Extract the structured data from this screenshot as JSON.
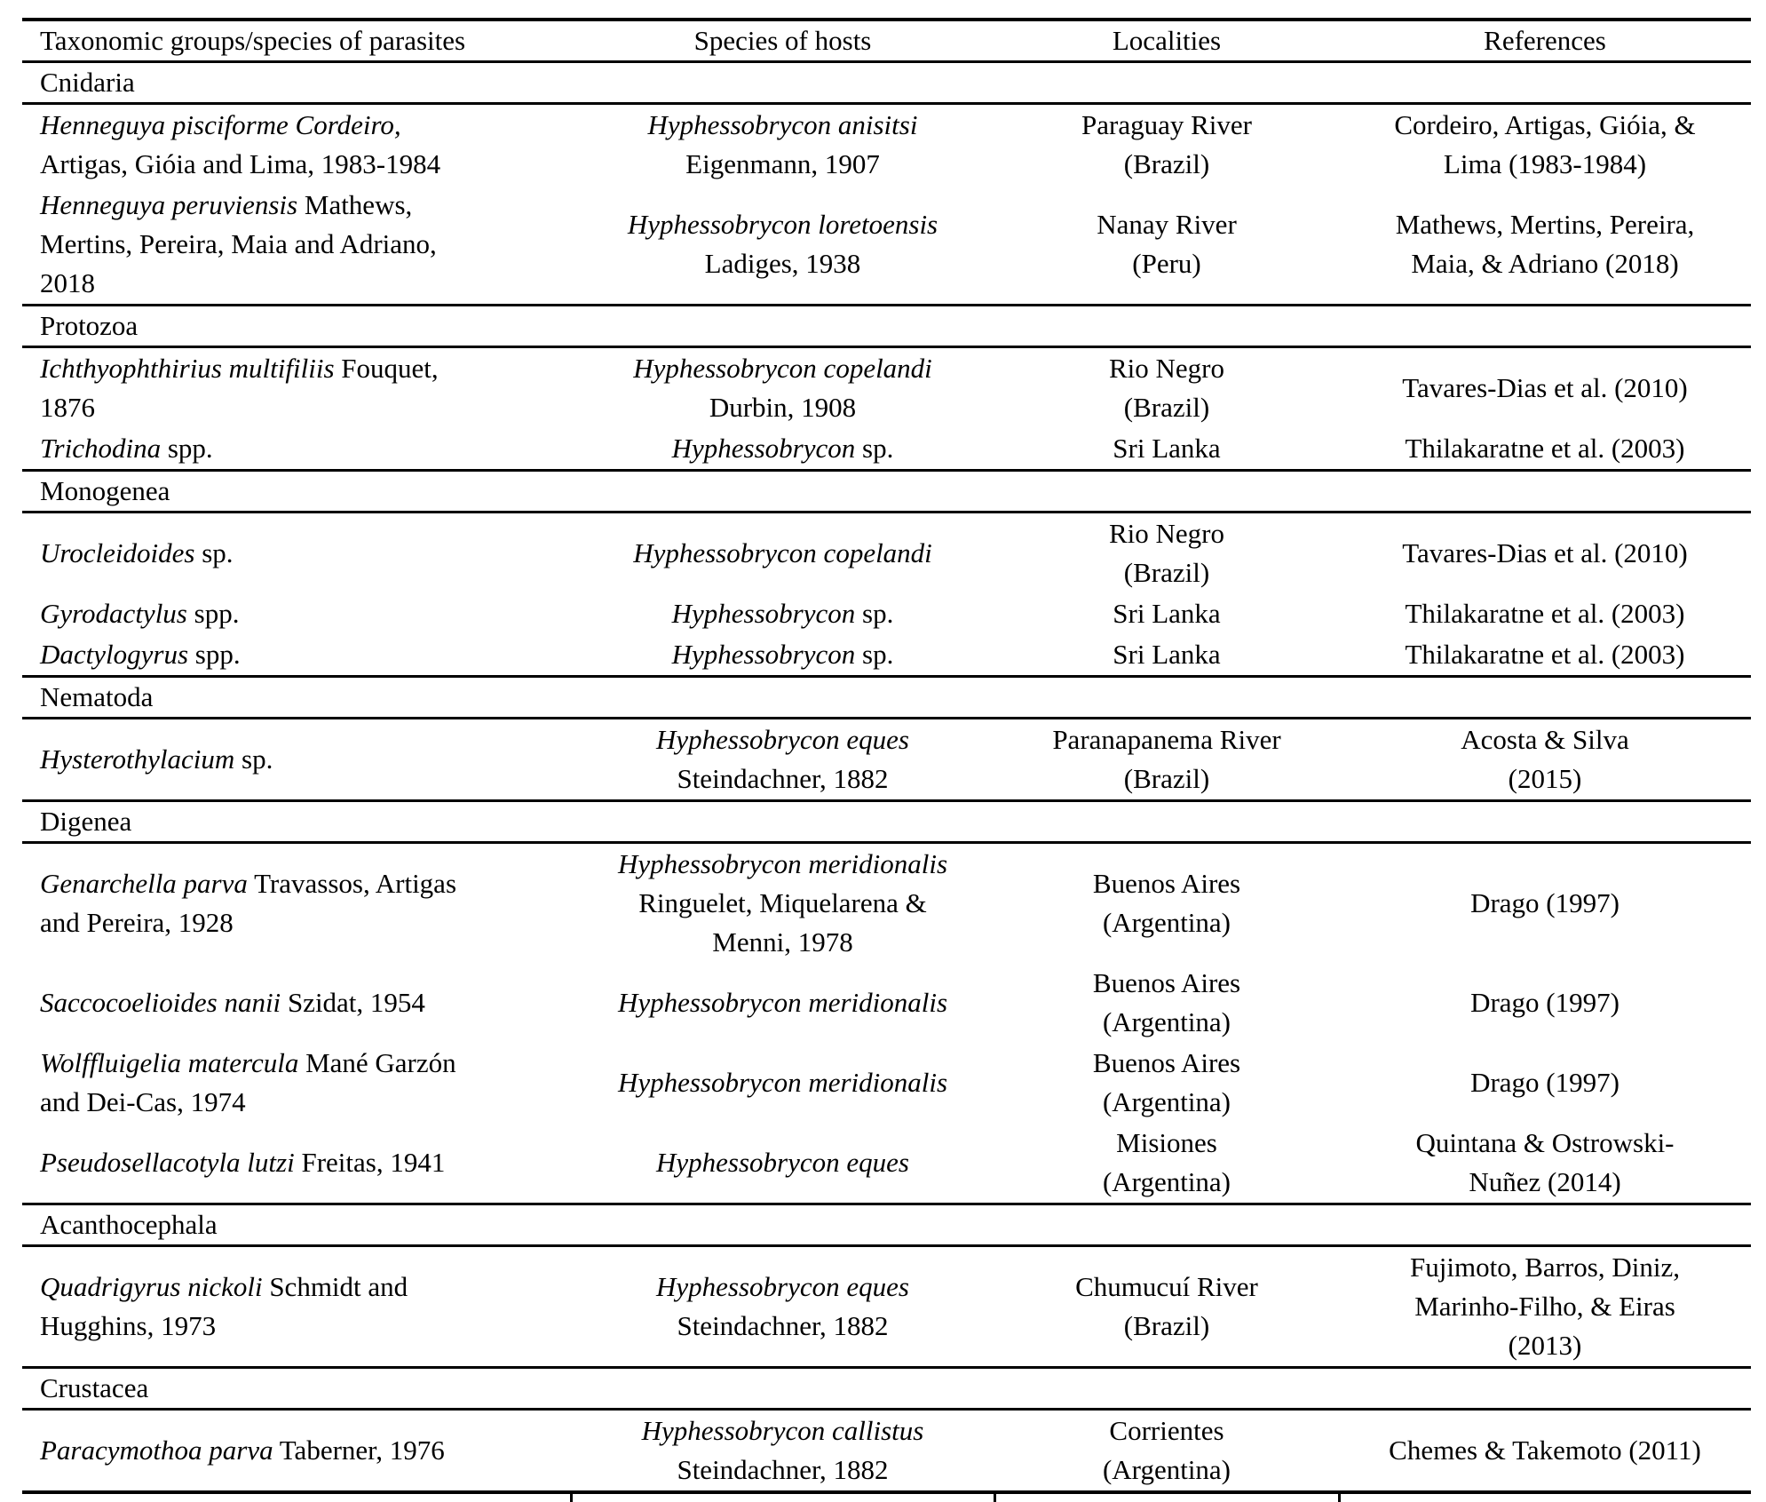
{
  "colors": {
    "background": "#ffffff",
    "text": "#000000",
    "rule": "#000000"
  },
  "table": {
    "headers": [
      "Taxonomic groups/species of parasites",
      "Species of hosts",
      "Localities",
      "References"
    ],
    "columns": [
      "parasite",
      "host",
      "locality",
      "reference"
    ],
    "sections": [
      {
        "group": "Cnidaria",
        "rows": [
          {
            "parasite": [
              [
                {
                  "text": "Henneguya pisciforme Cordeiro,",
                  "italic": true
                }
              ],
              [
                {
                  "text": "Artigas, Gióia and Lima, 1983-1984",
                  "italic": false
                }
              ]
            ],
            "host": [
              [
                {
                  "text": "Hyphessobrycon anisitsi",
                  "italic": true
                }
              ],
              [
                {
                  "text": "Eigenmann, 1907",
                  "italic": false
                }
              ]
            ],
            "locality": [
              [
                {
                  "text": "Paraguay River",
                  "italic": false
                }
              ],
              [
                {
                  "text": "(Brazil)",
                  "italic": false
                }
              ]
            ],
            "reference": [
              [
                {
                  "text": "Cordeiro, Artigas, Gióia, &",
                  "italic": false
                }
              ],
              [
                {
                  "text": "Lima (1983-1984)",
                  "italic": false
                }
              ]
            ]
          },
          {
            "parasite": [
              [
                {
                  "text": "Henneguya peruviensis",
                  "italic": true
                },
                {
                  "text": " Mathews,",
                  "italic": false
                }
              ],
              [
                {
                  "text": "Mertins, Pereira, Maia and Adriano,",
                  "italic": false
                }
              ],
              [
                {
                  "text": "2018",
                  "italic": false
                }
              ]
            ],
            "host": [
              [
                {
                  "text": "Hyphessobrycon loretoensis",
                  "italic": true
                }
              ],
              [
                {
                  "text": "Ladiges, 1938",
                  "italic": false
                }
              ]
            ],
            "locality": [
              [
                {
                  "text": "Nanay River",
                  "italic": false
                }
              ],
              [
                {
                  "text": "(Peru)",
                  "italic": false
                }
              ]
            ],
            "reference": [
              [
                {
                  "text": "Mathews, Mertins, Pereira,",
                  "italic": false
                }
              ],
              [
                {
                  "text": "Maia, & Adriano (2018)",
                  "italic": false
                }
              ]
            ]
          }
        ]
      },
      {
        "group": "Protozoa",
        "rows": [
          {
            "parasite": [
              [
                {
                  "text": "Ichthyophthirius multifiliis",
                  "italic": true
                },
                {
                  "text": " Fouquet,",
                  "italic": false
                }
              ],
              [
                {
                  "text": "1876",
                  "italic": false
                }
              ]
            ],
            "host": [
              [
                {
                  "text": "Hyphessobrycon copelandi",
                  "italic": true
                }
              ],
              [
                {
                  "text": "Durbin, 1908",
                  "italic": false
                }
              ]
            ],
            "locality": [
              [
                {
                  "text": "Rio Negro",
                  "italic": false
                }
              ],
              [
                {
                  "text": "(Brazil)",
                  "italic": false
                }
              ]
            ],
            "reference": [
              [
                {
                  "text": "Tavares-Dias et al. (2010)",
                  "italic": false
                }
              ]
            ]
          },
          {
            "parasite": [
              [
                {
                  "text": "Trichodina",
                  "italic": true
                },
                {
                  "text": " spp.",
                  "italic": false
                }
              ]
            ],
            "host": [
              [
                {
                  "text": "Hyphessobrycon",
                  "italic": true
                },
                {
                  "text": " sp.",
                  "italic": false
                }
              ]
            ],
            "locality": [
              [
                {
                  "text": "Sri Lanka",
                  "italic": false
                }
              ]
            ],
            "reference": [
              [
                {
                  "text": "Thilakaratne et al. (2003)",
                  "italic": false
                }
              ]
            ]
          }
        ]
      },
      {
        "group": "Monogenea",
        "rows": [
          {
            "parasite": [
              [
                {
                  "text": "Urocleidoides",
                  "italic": true
                },
                {
                  "text": " sp.",
                  "italic": false
                }
              ]
            ],
            "host": [
              [
                {
                  "text": "Hyphessobrycon copelandi",
                  "italic": true
                }
              ]
            ],
            "locality": [
              [
                {
                  "text": "Rio Negro",
                  "italic": false
                }
              ],
              [
                {
                  "text": "(Brazil)",
                  "italic": false
                }
              ]
            ],
            "reference": [
              [
                {
                  "text": "Tavares-Dias et al. (2010)",
                  "italic": false
                }
              ]
            ]
          },
          {
            "parasite": [
              [
                {
                  "text": "Gyrodactylus",
                  "italic": true
                },
                {
                  "text": " spp.",
                  "italic": false
                }
              ]
            ],
            "host": [
              [
                {
                  "text": "Hyphessobrycon",
                  "italic": true
                },
                {
                  "text": " sp.",
                  "italic": false
                }
              ]
            ],
            "locality": [
              [
                {
                  "text": "Sri Lanka",
                  "italic": false
                }
              ]
            ],
            "reference": [
              [
                {
                  "text": "Thilakaratne et al. (2003)",
                  "italic": false
                }
              ]
            ]
          },
          {
            "parasite": [
              [
                {
                  "text": "Dactylogyrus",
                  "italic": true
                },
                {
                  "text": " spp.",
                  "italic": false
                }
              ]
            ],
            "host": [
              [
                {
                  "text": "Hyphessobrycon",
                  "italic": true
                },
                {
                  "text": " sp.",
                  "italic": false
                }
              ]
            ],
            "locality": [
              [
                {
                  "text": "Sri Lanka",
                  "italic": false
                }
              ]
            ],
            "reference": [
              [
                {
                  "text": "Thilakaratne et al. (2003)",
                  "italic": false
                }
              ]
            ]
          }
        ]
      },
      {
        "group": "Nematoda",
        "rows": [
          {
            "parasite": [
              [
                {
                  "text": "Hysterothylacium",
                  "italic": true
                },
                {
                  "text": " sp.",
                  "italic": false
                }
              ]
            ],
            "host": [
              [
                {
                  "text": "Hyphessobrycon eques",
                  "italic": true
                }
              ],
              [
                {
                  "text": "Steindachner, 1882",
                  "italic": false
                }
              ]
            ],
            "locality": [
              [
                {
                  "text": "Paranapanema River",
                  "italic": false
                }
              ],
              [
                {
                  "text": "(Brazil)",
                  "italic": false
                }
              ]
            ],
            "reference": [
              [
                {
                  "text": "Acosta & Silva",
                  "italic": false
                }
              ],
              [
                {
                  "text": "(2015)",
                  "italic": false
                }
              ]
            ]
          }
        ]
      },
      {
        "group": "Digenea",
        "rows": [
          {
            "parasite": [
              [
                {
                  "text": "Genarchella parva",
                  "italic": true
                },
                {
                  "text": " Travassos, Artigas",
                  "italic": false
                }
              ],
              [
                {
                  "text": "and Pereira, 1928",
                  "italic": false
                }
              ]
            ],
            "host": [
              [
                {
                  "text": "Hyphessobrycon meridionalis",
                  "italic": true
                }
              ],
              [
                {
                  "text": "Ringuelet, Miquelarena &",
                  "italic": false
                }
              ],
              [
                {
                  "text": "Menni, 1978",
                  "italic": false
                }
              ]
            ],
            "locality": [
              [
                {
                  "text": "Buenos Aires",
                  "italic": false
                }
              ],
              [
                {
                  "text": "(Argentina)",
                  "italic": false
                }
              ]
            ],
            "reference": [
              [
                {
                  "text": "Drago (1997)",
                  "italic": false
                }
              ]
            ]
          },
          {
            "parasite": [
              [
                {
                  "text": "Saccocoelioides nanii",
                  "italic": true
                },
                {
                  "text": " Szidat, 1954",
                  "italic": false
                }
              ]
            ],
            "host": [
              [
                {
                  "text": "Hyphessobrycon meridionalis",
                  "italic": true
                }
              ]
            ],
            "locality": [
              [
                {
                  "text": "Buenos Aires",
                  "italic": false
                }
              ],
              [
                {
                  "text": "(Argentina)",
                  "italic": false
                }
              ]
            ],
            "reference": [
              [
                {
                  "text": "Drago (1997)",
                  "italic": false
                }
              ]
            ]
          },
          {
            "parasite": [
              [
                {
                  "text": "Wolffluigelia matercula",
                  "italic": true
                },
                {
                  "text": " Mané Garzón",
                  "italic": false
                }
              ],
              [
                {
                  "text": "and Dei-Cas, 1974",
                  "italic": false
                }
              ]
            ],
            "host": [
              [
                {
                  "text": "Hyphessobrycon meridionalis",
                  "italic": true
                }
              ]
            ],
            "locality": [
              [
                {
                  "text": "Buenos Aires",
                  "italic": false
                }
              ],
              [
                {
                  "text": "(Argentina)",
                  "italic": false
                }
              ]
            ],
            "reference": [
              [
                {
                  "text": "Drago (1997)",
                  "italic": false
                }
              ]
            ]
          },
          {
            "parasite": [
              [
                {
                  "text": "Pseudosellacotyla lutzi",
                  "italic": true
                },
                {
                  "text": " Freitas, 1941",
                  "italic": false
                }
              ]
            ],
            "host": [
              [
                {
                  "text": "Hyphessobrycon eques",
                  "italic": true
                }
              ]
            ],
            "locality": [
              [
                {
                  "text": "Misiones",
                  "italic": false
                }
              ],
              [
                {
                  "text": "(Argentina)",
                  "italic": false
                }
              ]
            ],
            "reference": [
              [
                {
                  "text": "Quintana & Ostrowski-",
                  "italic": false
                }
              ],
              [
                {
                  "text": "Nuñez (2014)",
                  "italic": false
                }
              ]
            ]
          }
        ]
      },
      {
        "group": "Acanthocephala",
        "rows": [
          {
            "parasite": [
              [
                {
                  "text": "Quadrigyrus nickoli",
                  "italic": true
                },
                {
                  "text": " Schmidt and",
                  "italic": false
                }
              ],
              [
                {
                  "text": "Hugghins, 1973",
                  "italic": false
                }
              ]
            ],
            "host": [
              [
                {
                  "text": "Hyphessobrycon eques",
                  "italic": true
                }
              ],
              [
                {
                  "text": "Steindachner, 1882",
                  "italic": false
                }
              ]
            ],
            "locality": [
              [
                {
                  "text": "Chumucuí River",
                  "italic": false
                }
              ],
              [
                {
                  "text": "(Brazil)",
                  "italic": false
                }
              ]
            ],
            "reference": [
              [
                {
                  "text": "Fujimoto, Barros, Diniz,",
                  "italic": false
                }
              ],
              [
                {
                  "text": "Marinho-Filho, & Eiras",
                  "italic": false
                }
              ],
              [
                {
                  "text": "(2013)",
                  "italic": false
                }
              ]
            ]
          }
        ]
      },
      {
        "group": "Crustacea",
        "rows": [
          {
            "parasite": [
              [
                {
                  "text": "Paracymothoa parva",
                  "italic": true
                },
                {
                  "text": " Taberner, 1976",
                  "italic": false
                }
              ]
            ],
            "host": [
              [
                {
                  "text": "Hyphessobrycon callistus",
                  "italic": true
                }
              ],
              [
                {
                  "text": "Steindachner, 1882",
                  "italic": false
                }
              ]
            ],
            "locality": [
              [
                {
                  "text": "Corrientes",
                  "italic": false
                }
              ],
              [
                {
                  "text": "(Argentina)",
                  "italic": false
                }
              ]
            ],
            "reference": [
              [
                {
                  "text": "Chemes & Takemoto (2011)",
                  "italic": false
                }
              ]
            ]
          }
        ]
      }
    ]
  }
}
